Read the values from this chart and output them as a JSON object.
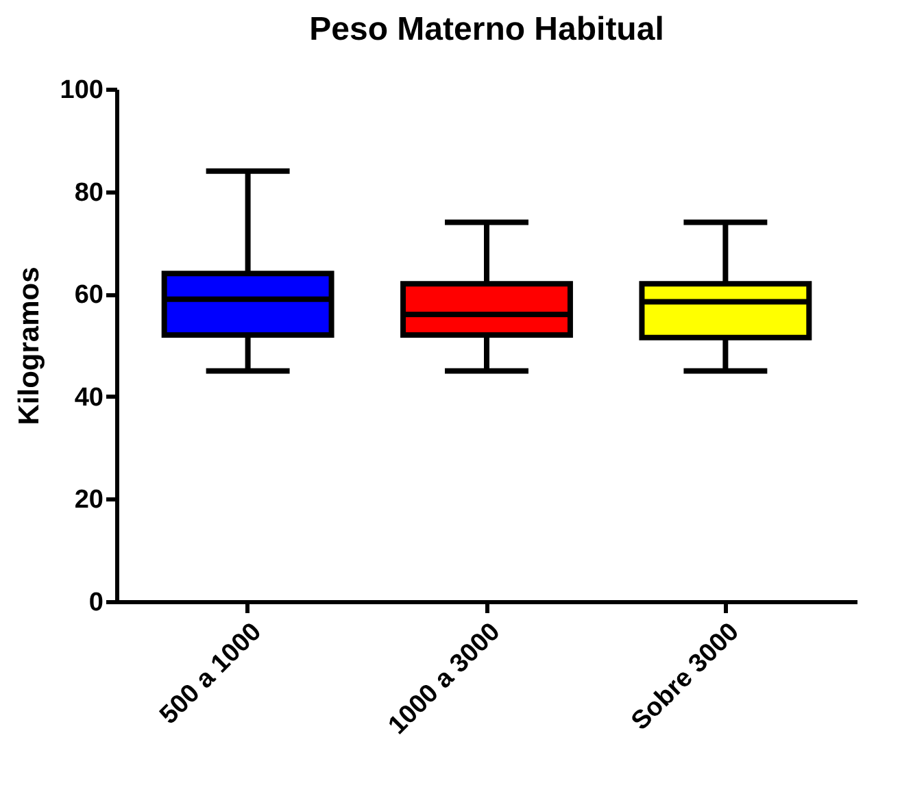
{
  "chart_data": {
    "type": "box",
    "title": "Peso Materno Habitual",
    "ylabel": "Kilogramos",
    "categories": [
      "500 a 1000",
      "1000 a 3000",
      "Sobre 3000"
    ],
    "colors": [
      "#0000ff",
      "#ff0000",
      "#ffff00"
    ],
    "boxes": [
      {
        "low": 45,
        "q1": 52,
        "median": 59,
        "q3": 64,
        "high": 84
      },
      {
        "low": 45,
        "q1": 52,
        "median": 56,
        "q3": 62,
        "high": 74
      },
      {
        "low": 45,
        "q1": 51.5,
        "median": 58.5,
        "q3": 62,
        "high": 74
      }
    ],
    "ylim": [
      0,
      100
    ],
    "yticks": [
      0,
      20,
      40,
      60,
      80,
      100
    ],
    "grid": false
  }
}
